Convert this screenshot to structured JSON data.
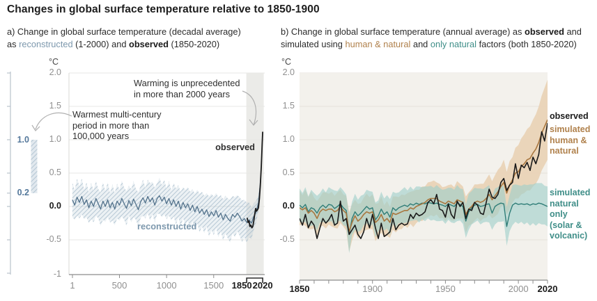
{
  "title": "Changes in global surface temperature relative to 1850-1900",
  "colors": {
    "text": "#1d1d1d",
    "tick_text": "#8f8f8f",
    "grid": "#e4e1da",
    "grid_a": "#e7e7e4",
    "axis": "#8c8c8c",
    "arrow": "#b0b0b0",
    "observed": "#1a1a1a",
    "recon_line": "#54738c",
    "recon_text": "#7d98ad",
    "recon_band": "#a9becd",
    "mini_label": "#54789b",
    "human_line": "#a8763e",
    "human_text": "#b0814c",
    "human_band": "#e9d2b5",
    "natural_line": "#2f7d77",
    "natural_text": "#3f8e88",
    "natural_band": "#9ecfca",
    "panel_b_bg": "#f3f1ec",
    "panel_a_highlight": "#ebebe8"
  },
  "chart_data": [
    {
      "type": "line",
      "panel": "a",
      "subtitle": {
        "line1": "a) Change in global surface temperature (decadal average)",
        "line2_pre": "as ",
        "line2_recon": "reconstructed",
        "line2_mid": " (1-2000) and ",
        "line2_obs": "observed",
        "line2_post": " (1850-2020)"
      },
      "unit": "°C",
      "xlim": [
        1,
        2020
      ],
      "ylim": [
        -1,
        2
      ],
      "grid": true,
      "yticks": [
        {
          "label": "2.0",
          "v": 2
        },
        {
          "label": "1.5",
          "v": 1.5
        },
        {
          "label": "1.0",
          "v": 1
        },
        {
          "label": "0.5",
          "v": 0.5
        },
        {
          "label": "0.0",
          "v": 0,
          "bold": true
        },
        {
          "label": "-0.5",
          "v": -0.5
        },
        {
          "label": "-1",
          "v": -1
        }
      ],
      "xticks": [
        {
          "label": "1",
          "year": 1
        },
        {
          "label": "500",
          "year": 500
        },
        {
          "label": "1000",
          "year": 1000
        },
        {
          "label": "1500",
          "year": 1500
        },
        {
          "label": "1850",
          "year": 1850,
          "bold": true
        },
        {
          "label": "2020",
          "year": 2020,
          "bold": true
        }
      ],
      "highlight_span": {
        "start": 1850,
        "end": 2020
      },
      "side_bar": {
        "top_label": "1.0",
        "bottom_label": "0.2",
        "range": [
          0.2,
          1.0
        ],
        "axis_ticks": [
          2,
          1.5,
          1,
          0.5,
          0.2,
          0,
          -0.5,
          -1
        ]
      },
      "annotations": {
        "warming": {
          "line1": "Warming is unprecedented",
          "line2": "in more than 2000 years"
        },
        "warmest": {
          "line1": "Warmest multi-century",
          "line2": "period in more than",
          "line3": "100,000 years"
        },
        "observed_label": "observed",
        "reconstructed_label": "reconstructed"
      },
      "series": [
        {
          "name": "reconstructed",
          "x_start": 0,
          "x_step": 25,
          "values": [
            0.1,
            0.02,
            0.14,
            0.06,
            0.15,
            0.03,
            0.1,
            -0.02,
            0.08,
            0.0,
            0.12,
            0.04,
            -0.04,
            0.08,
            0.0,
            0.1,
            -0.02,
            0.06,
            -0.04,
            0.08,
            0.02,
            0.12,
            0.04,
            -0.03,
            0.09,
            0.01,
            0.11,
            0.03,
            -0.05,
            0.07,
            0.13,
            0.05,
            0.15,
            0.07,
            0.13,
            0.02,
            0.12,
            0.16,
            0.08,
            0.14,
            0.04,
            0.12,
            0.02,
            0.1,
            0.0,
            0.08,
            -0.04,
            0.06,
            -0.02,
            0.04,
            -0.06,
            0.02,
            -0.08,
            0.0,
            -0.1,
            -0.04,
            -0.12,
            -0.05,
            -0.15,
            -0.08,
            -0.14,
            -0.06,
            -0.16,
            -0.1,
            -0.2,
            -0.12,
            -0.18,
            -0.22,
            -0.12,
            -0.16,
            -0.1,
            -0.15,
            -0.22,
            -0.18,
            -0.24,
            -0.2,
            -0.25,
            -0.15,
            -0.08,
            0.05,
            0.42
          ],
          "band_halfwidth": [
            0.26,
            0.22,
            0.28,
            0.24,
            0.27,
            0.22,
            0.26,
            0.23,
            0.27,
            0.24,
            0.26,
            0.22,
            0.25,
            0.28,
            0.23,
            0.26,
            0.22,
            0.27,
            0.24,
            0.26,
            0.23,
            0.27,
            0.24,
            0.26,
            0.22,
            0.25,
            0.27,
            0.23,
            0.26,
            0.24,
            0.27,
            0.23,
            0.25,
            0.28,
            0.24,
            0.26,
            0.23,
            0.27,
            0.24,
            0.26,
            0.23,
            0.26,
            0.22,
            0.25,
            0.27,
            0.24,
            0.26,
            0.23,
            0.27,
            0.25,
            0.28,
            0.24,
            0.27,
            0.25,
            0.29,
            0.26,
            0.28,
            0.25,
            0.3,
            0.27,
            0.29,
            0.26,
            0.3,
            0.27,
            0.31,
            0.28,
            0.3,
            0.32,
            0.28,
            0.3,
            0.27,
            0.29,
            0.31,
            0.28,
            0.3,
            0.26,
            0.24,
            0.2,
            0.16,
            0.12,
            0.1
          ]
        },
        {
          "name": "observed",
          "points": [
            [
              1855,
              -0.17
            ],
            [
              1865,
              -0.24
            ],
            [
              1875,
              -0.22
            ],
            [
              1885,
              -0.3
            ],
            [
              1895,
              -0.28
            ],
            [
              1905,
              -0.32
            ],
            [
              1915,
              -0.3
            ],
            [
              1925,
              -0.22
            ],
            [
              1935,
              -0.12
            ],
            [
              1945,
              -0.03
            ],
            [
              1955,
              -0.07
            ],
            [
              1965,
              -0.05
            ],
            [
              1975,
              -0.02
            ],
            [
              1985,
              0.12
            ],
            [
              1995,
              0.32
            ],
            [
              2005,
              0.6
            ],
            [
              2015,
              0.95
            ],
            [
              2020,
              1.12
            ]
          ]
        }
      ]
    },
    {
      "type": "line",
      "panel": "b",
      "subtitle": {
        "line1_pre": "b) Change in global surface temperature (annual average) as ",
        "line1_obs": "observed",
        "line1_post": " and",
        "line2_pre": "simulated using ",
        "line2_human": "human & natural",
        "line2_mid": " and ",
        "line2_natural": "only natural",
        "line2_post": " factors (both 1850-2020)"
      },
      "unit": "°C",
      "xlim": [
        1850,
        2020
      ],
      "ylim": [
        -1.1,
        2
      ],
      "grid": true,
      "yticks": [
        {
          "label": "2.0",
          "v": 2
        },
        {
          "label": "1.5",
          "v": 1.5
        },
        {
          "label": "1.0",
          "v": 1
        },
        {
          "label": "0.5",
          "v": 0.5
        },
        {
          "label": "0.0",
          "v": 0,
          "bold": true
        },
        {
          "label": "-0.5",
          "v": -0.5
        }
      ],
      "xticks": [
        {
          "label": "1850",
          "year": 1850,
          "bold": true
        },
        {
          "label": "1900",
          "year": 1900
        },
        {
          "label": "1950",
          "year": 1950
        },
        {
          "label": "2000",
          "year": 2000
        },
        {
          "label": "2020",
          "year": 2020,
          "bold": true
        }
      ],
      "minor_tick_step": 10,
      "labels": {
        "observed": "observed",
        "human": [
          "simulated",
          "human &",
          "natural"
        ],
        "natural": [
          "simulated",
          "natural only",
          "(solar &",
          "volcanic)"
        ]
      },
      "series": [
        {
          "name": "observed",
          "x_start": 1850,
          "x_step": 2,
          "values": [
            -0.18,
            -0.28,
            -0.12,
            -0.32,
            -0.22,
            -0.28,
            -0.48,
            -0.32,
            -0.18,
            -0.25,
            -0.2,
            -0.12,
            -0.28,
            -0.25,
            0.08,
            -0.22,
            -0.18,
            -0.42,
            -0.35,
            -0.28,
            -0.42,
            -0.48,
            -0.38,
            -0.18,
            -0.32,
            -0.12,
            -0.32,
            -0.48,
            -0.25,
            -0.45,
            -0.42,
            -0.38,
            -0.18,
            -0.35,
            -0.28,
            -0.25,
            -0.28,
            -0.26,
            -0.12,
            -0.18,
            -0.1,
            -0.14,
            -0.12,
            -0.08,
            0.06,
            0.1,
            0.04,
            0.18,
            -0.04,
            -0.06,
            -0.16,
            0.04,
            -0.12,
            -0.18,
            0.08,
            0.0,
            0.06,
            -0.18,
            -0.04,
            -0.06,
            0.06,
            0.02,
            -0.1,
            -0.12,
            0.06,
            0.26,
            0.14,
            0.12,
            0.18,
            0.36,
            0.42,
            0.24,
            0.32,
            0.36,
            0.64,
            0.42,
            0.62,
            0.58,
            0.66,
            0.54,
            0.74,
            0.64,
            0.78,
            1.12,
            0.98,
            1.25
          ]
        },
        {
          "name": "simulated human & natural",
          "x_start": 1850,
          "x_step": 2,
          "values": [
            -0.02,
            -0.05,
            -0.02,
            -0.1,
            -0.06,
            -0.1,
            -0.18,
            -0.08,
            -0.04,
            -0.06,
            -0.04,
            -0.04,
            -0.08,
            -0.06,
            0.0,
            -0.06,
            -0.1,
            -0.38,
            -0.24,
            -0.14,
            -0.22,
            -0.18,
            -0.12,
            -0.08,
            -0.1,
            -0.08,
            -0.24,
            -0.2,
            -0.12,
            -0.22,
            -0.18,
            -0.24,
            -0.1,
            -0.12,
            -0.1,
            -0.08,
            -0.06,
            -0.06,
            -0.02,
            -0.04,
            0.0,
            0.02,
            0.04,
            0.06,
            0.1,
            0.12,
            0.12,
            0.12,
            0.08,
            0.06,
            0.04,
            0.08,
            0.06,
            0.04,
            0.1,
            0.08,
            0.06,
            -0.12,
            -0.04,
            0.0,
            0.06,
            0.08,
            0.06,
            0.08,
            0.12,
            0.18,
            0.1,
            0.16,
            0.22,
            0.3,
            0.36,
            0.2,
            0.32,
            0.4,
            0.5,
            0.52,
            0.6,
            0.64,
            0.7,
            0.72,
            0.8,
            0.86,
            0.96,
            1.1,
            1.2,
            1.3
          ],
          "band_halfwidth": [
            0.26,
            0.22,
            0.27,
            0.24,
            0.28,
            0.23,
            0.26,
            0.22,
            0.25,
            0.27,
            0.23,
            0.26,
            0.24,
            0.27,
            0.25,
            0.24,
            0.26,
            0.3,
            0.27,
            0.24,
            0.26,
            0.23,
            0.25,
            0.27,
            0.24,
            0.26,
            0.28,
            0.25,
            0.27,
            0.24,
            0.26,
            0.23,
            0.25,
            0.27,
            0.24,
            0.26,
            0.23,
            0.26,
            0.24,
            0.27,
            0.25,
            0.23,
            0.26,
            0.24,
            0.26,
            0.25,
            0.27,
            0.24,
            0.26,
            0.23,
            0.26,
            0.24,
            0.27,
            0.25,
            0.28,
            0.26,
            0.24,
            0.27,
            0.25,
            0.26,
            0.27,
            0.25,
            0.28,
            0.26,
            0.29,
            0.3,
            0.28,
            0.31,
            0.33,
            0.3,
            0.34,
            0.32,
            0.36,
            0.34,
            0.38,
            0.4,
            0.42,
            0.44,
            0.46,
            0.48,
            0.5,
            0.52,
            0.54,
            0.56,
            0.58,
            0.6
          ]
        },
        {
          "name": "simulated natural only (solar & volcanic)",
          "x_start": 1850,
          "x_step": 2,
          "values": [
            0.02,
            -0.02,
            0.03,
            -0.08,
            -0.02,
            -0.04,
            -0.1,
            -0.02,
            0.02,
            -0.02,
            0.03,
            0.02,
            -0.03,
            0.0,
            0.04,
            -0.02,
            -0.06,
            -0.42,
            -0.18,
            -0.08,
            -0.14,
            -0.1,
            -0.05,
            0.0,
            -0.04,
            -0.02,
            -0.2,
            -0.14,
            -0.04,
            -0.12,
            -0.08,
            -0.16,
            -0.02,
            -0.06,
            -0.02,
            0.0,
            0.02,
            0.0,
            0.04,
            0.02,
            0.05,
            0.03,
            0.05,
            0.04,
            0.06,
            0.05,
            0.04,
            0.05,
            0.03,
            0.02,
            0.0,
            0.04,
            0.02,
            0.0,
            0.05,
            0.03,
            0.0,
            -0.22,
            -0.08,
            -0.02,
            0.02,
            0.03,
            0.0,
            0.01,
            0.03,
            0.04,
            -0.1,
            0.0,
            0.03,
            0.05,
            0.04,
            -0.3,
            -0.1,
            0.02,
            0.05,
            0.03,
            0.04,
            0.03,
            0.04,
            0.02,
            0.04,
            0.03,
            0.05,
            0.04,
            0.02,
            0.0
          ],
          "band_halfwidth": [
            0.25,
            0.22,
            0.26,
            0.23,
            0.27,
            0.24,
            0.26,
            0.22,
            0.25,
            0.23,
            0.26,
            0.24,
            0.27,
            0.23,
            0.25,
            0.26,
            0.24,
            0.28,
            0.25,
            0.27,
            0.24,
            0.26,
            0.23,
            0.25,
            0.27,
            0.24,
            0.26,
            0.23,
            0.26,
            0.24,
            0.25,
            0.27,
            0.24,
            0.26,
            0.23,
            0.25,
            0.27,
            0.24,
            0.26,
            0.23,
            0.25,
            0.27,
            0.24,
            0.26,
            0.24,
            0.26,
            0.24,
            0.27,
            0.25,
            0.23,
            0.26,
            0.24,
            0.26,
            0.25,
            0.27,
            0.24,
            0.26,
            0.25,
            0.27,
            0.25,
            0.26,
            0.24,
            0.27,
            0.25,
            0.26,
            0.28,
            0.25,
            0.27,
            0.26,
            0.28,
            0.26,
            0.29,
            0.27,
            0.3,
            0.28,
            0.29,
            0.27,
            0.3,
            0.28,
            0.31,
            0.29,
            0.32,
            0.3,
            0.31,
            0.29,
            0.3
          ]
        }
      ]
    }
  ]
}
